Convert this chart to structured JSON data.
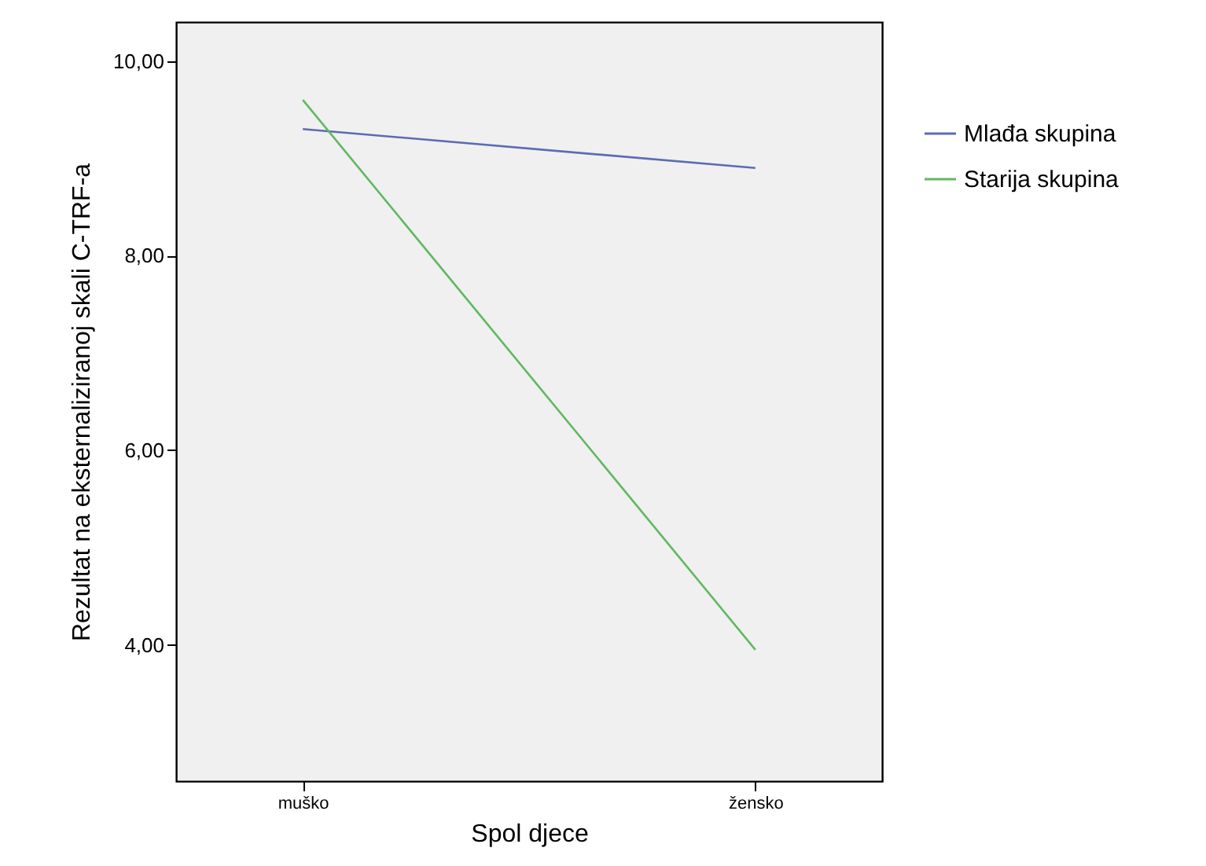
{
  "chart_data": {
    "type": "line",
    "xlabel": "Spol djece",
    "ylabel": "Rezultat na eksternaliziranoj skali C-TRF-a",
    "categories": [
      "muško",
      "žensko"
    ],
    "series": [
      {
        "name": "Mlađa skupina",
        "color": "#5b6cb4",
        "values": [
          9.3,
          8.9
        ]
      },
      {
        "name": "Starija skupina",
        "color": "#62b862",
        "values": [
          9.6,
          3.95
        ]
      }
    ],
    "ylim": [
      2.6,
      10.4
    ],
    "yticks": [
      {
        "value": 4,
        "label": "4,00"
      },
      {
        "value": 6,
        "label": "6,00"
      },
      {
        "value": 8,
        "label": "8,00"
      },
      {
        "value": 10,
        "label": "10,00"
      }
    ],
    "grid": false,
    "legend": "right",
    "marker": "none",
    "line_style": "solid"
  }
}
